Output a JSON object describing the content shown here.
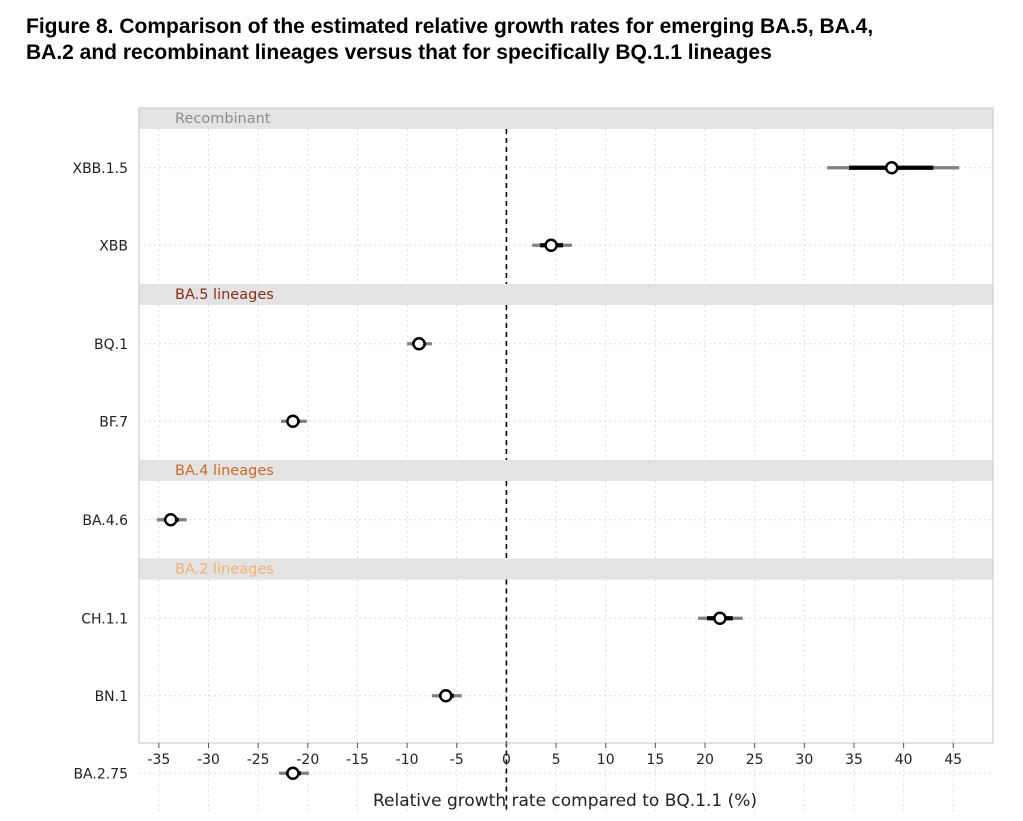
{
  "figure": {
    "title_line1": "Figure 8. Comparison of the estimated relative growth rates for emerging BA.5, BA.4,",
    "title_line2": "BA.2 and recombinant lineages versus that for specifically BQ.1.1 lineages"
  },
  "chart_data": {
    "type": "scatter",
    "subtype": "forest-plot",
    "title": "Figure 8. Comparison of the estimated relative growth rates for emerging BA.5, BA.4, BA.2 and recombinant lineages versus that for specifically BQ.1.1 lineages",
    "xlabel": "Relative growth rate compared to BQ.1.1 (%)",
    "ylabel": "",
    "xlim": [
      -37,
      49
    ],
    "xticks": [
      -35,
      -30,
      -25,
      -20,
      -15,
      -10,
      -5,
      0,
      5,
      10,
      15,
      20,
      25,
      30,
      35,
      40,
      45
    ],
    "reference_line": 0,
    "grid": true,
    "legend": "none",
    "panels": [
      {
        "name": "Recombinant",
        "color": "#8c8c8c",
        "rows": [
          {
            "label": "XBB.1.5",
            "estimate": 38.8,
            "inner": [
              34.5,
              43.0
            ],
            "outer": [
              32.3,
              45.6
            ]
          },
          {
            "label": "XBB",
            "estimate": 4.5,
            "inner": [
              3.4,
              5.7
            ],
            "outer": [
              2.6,
              6.6
            ]
          }
        ]
      },
      {
        "name": "BA.5 lineages",
        "color": "#8b2e16",
        "rows": [
          {
            "label": "BQ.1",
            "estimate": -8.8,
            "inner": [
              -9.5,
              -8.1
            ],
            "outer": [
              -10.0,
              -7.5
            ]
          },
          {
            "label": "BF.7",
            "estimate": -21.5,
            "inner": [
              -22.1,
              -20.8
            ],
            "outer": [
              -22.7,
              -20.1
            ]
          }
        ]
      },
      {
        "name": "BA.4 lineages",
        "color": "#d2691e",
        "rows": [
          {
            "label": "BA.4.6",
            "estimate": -33.8,
            "inner": [
              -34.5,
              -33.0
            ],
            "outer": [
              -35.2,
              -32.2
            ]
          }
        ]
      },
      {
        "name": "BA.2 lineages",
        "color": "#f5b26b",
        "rows": [
          {
            "label": "CH.1.1",
            "estimate": 21.5,
            "inner": [
              20.2,
              22.8
            ],
            "outer": [
              19.3,
              23.8
            ]
          },
          {
            "label": "BN.1",
            "estimate": -6.1,
            "inner": [
              -6.8,
              -5.3
            ],
            "outer": [
              -7.5,
              -4.5
            ]
          },
          {
            "label": "BA.2.75",
            "estimate": -21.5,
            "inner": [
              -22.2,
              -20.7
            ],
            "outer": [
              -22.9,
              -19.9
            ]
          }
        ]
      }
    ]
  }
}
